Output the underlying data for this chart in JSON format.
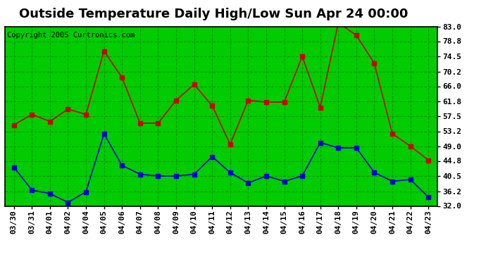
{
  "title": "Outside Temperature Daily High/Low Sun Apr 24 00:00",
  "copyright": "Copyright 2005 Curtronics.com",
  "x_labels": [
    "03/30",
    "03/31",
    "04/01",
    "04/02",
    "04/04",
    "04/05",
    "04/06",
    "04/07",
    "04/08",
    "04/09",
    "04/10",
    "04/11",
    "04/12",
    "04/13",
    "04/14",
    "04/15",
    "04/16",
    "04/17",
    "04/18",
    "04/19",
    "04/20",
    "04/21",
    "04/22",
    "04/23"
  ],
  "high_temps": [
    55.0,
    58.0,
    56.0,
    59.5,
    58.0,
    76.0,
    68.5,
    55.5,
    55.5,
    62.0,
    66.5,
    60.5,
    49.5,
    62.0,
    61.5,
    61.5,
    74.5,
    60.0,
    84.0,
    80.5,
    72.5,
    52.5,
    49.0,
    45.0
  ],
  "low_temps": [
    43.0,
    36.5,
    35.5,
    33.0,
    36.0,
    52.5,
    43.5,
    41.0,
    40.5,
    40.5,
    41.0,
    46.0,
    41.5,
    38.5,
    40.5,
    39.0,
    40.5,
    50.0,
    48.5,
    48.5,
    41.5,
    39.0,
    39.5,
    34.5
  ],
  "high_color": "#cc0000",
  "low_color": "#0000cc",
  "plot_bg_color": "#00cc00",
  "fig_bg_color": "#ffffff",
  "grid_color": "#009900",
  "border_color": "#000000",
  "ylim": [
    32.0,
    83.0
  ],
  "yticks": [
    32.0,
    36.2,
    40.5,
    44.8,
    49.0,
    53.2,
    57.5,
    61.8,
    66.0,
    70.2,
    74.5,
    78.8,
    83.0
  ],
  "title_fontsize": 13,
  "copyright_fontsize": 7.5,
  "tick_fontsize": 8,
  "marker_size": 4
}
